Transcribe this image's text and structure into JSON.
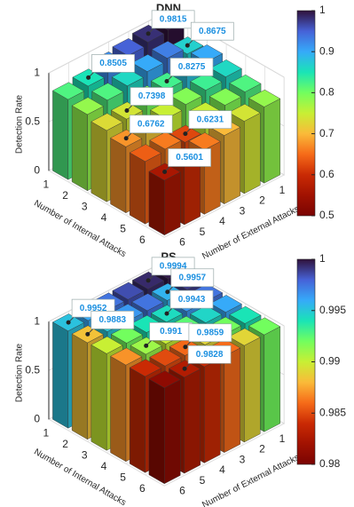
{
  "chart_data": [
    {
      "type": "bar3d",
      "title": "DNN",
      "zlabel": "Detection Rate",
      "xlabel": "Number of Internal Attacks",
      "ylabel": "Number of External Attacks",
      "x": [
        1,
        2,
        3,
        4,
        5,
        6
      ],
      "y": [
        1,
        2,
        3,
        4,
        5,
        6
      ],
      "values": [
        [
          1.0,
          0.9815,
          0.95,
          0.92,
          0.8505,
          0.82
        ],
        [
          0.8675,
          0.93,
          0.9,
          0.86,
          0.82,
          0.78
        ],
        [
          0.9,
          0.88,
          0.8275,
          0.8,
          0.7398,
          0.73
        ],
        [
          0.86,
          0.83,
          0.79,
          0.75,
          0.71,
          0.6762
        ],
        [
          0.82,
          0.79,
          0.75,
          0.6231,
          0.66,
          0.64
        ],
        [
          0.78,
          0.74,
          0.7,
          0.66,
          0.6,
          0.5601
        ]
      ],
      "datatips": [
        [
          0,
          1
        ],
        [
          0,
          4
        ],
        [
          1,
          0
        ],
        [
          2,
          2
        ],
        [
          2,
          4
        ],
        [
          3,
          5
        ],
        [
          4,
          3
        ],
        [
          5,
          5
        ]
      ],
      "zlim": [
        0,
        1
      ],
      "zticks": [
        0,
        0.5,
        1
      ],
      "clim": [
        0.5,
        1
      ],
      "cticks": [
        0.5,
        0.6,
        0.7,
        0.8,
        0.9,
        1
      ],
      "colormap": [
        "#7a0403",
        "#a11201",
        "#ca2a04",
        "#f66b19",
        "#faba39",
        "#c8ef34",
        "#72fe5e",
        "#1ae4b6",
        "#36aaf9",
        "#4662d7",
        "#30123b"
      ]
    },
    {
      "type": "bar3d",
      "title": "PS",
      "zlabel": "Detection Rate",
      "xlabel": "Number of Internal Attacks",
      "ylabel": "Number of External Attacks",
      "x": [
        1,
        2,
        3,
        4,
        5,
        6
      ],
      "y": [
        1,
        2,
        3,
        4,
        5,
        6
      ],
      "values": [
        [
          0.9998,
          0.9994,
          0.9985,
          0.9975,
          0.996,
          0.9952
        ],
        [
          0.999,
          0.9957,
          0.9975,
          0.9965,
          0.995,
          0.9883
        ],
        [
          0.9975,
          0.9965,
          0.9943,
          0.994,
          0.992,
          0.99
        ],
        [
          0.996,
          0.9945,
          0.9925,
          0.99,
          0.991,
          0.987
        ],
        [
          0.994,
          0.992,
          0.989,
          0.9859,
          0.985,
          0.984
        ],
        [
          0.992,
          0.989,
          0.986,
          0.984,
          0.9828,
          0.981
        ]
      ],
      "datatips": [
        [
          0,
          1
        ],
        [
          0,
          5
        ],
        [
          1,
          1
        ],
        [
          1,
          5
        ],
        [
          2,
          2
        ],
        [
          3,
          4
        ],
        [
          4,
          3
        ],
        [
          5,
          4
        ]
      ],
      "zlim": [
        0,
        1
      ],
      "zticks": [
        0,
        0.5,
        1
      ],
      "clim": [
        0.98,
        1
      ],
      "cticks": [
        0.98,
        0.985,
        0.99,
        0.995,
        1
      ],
      "colormap": [
        "#7a0403",
        "#a11201",
        "#ca2a04",
        "#f66b19",
        "#faba39",
        "#c8ef34",
        "#72fe5e",
        "#1ae4b6",
        "#36aaf9",
        "#4662d7",
        "#30123b"
      ]
    }
  ]
}
